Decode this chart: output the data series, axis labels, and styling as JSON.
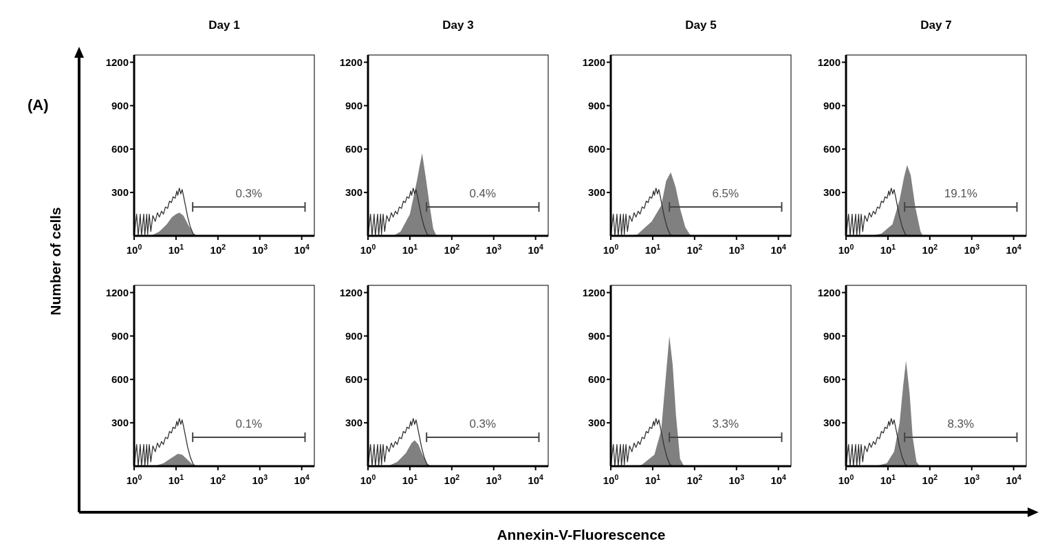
{
  "chart_data": [
    {
      "type": "area",
      "title": "Day 1",
      "ylabel": "Number of cells",
      "annotations": [
        "(A)",
        "0.3%"
      ],
      "log": "x",
      "xlim": [
        1,
        20000
      ],
      "ylim": [
        0,
        1250
      ],
      "xticks": [
        {
          "value": 1,
          "label": "10$^{0}$"
        },
        {
          "value": 10,
          "label": "10$^{1}$"
        },
        {
          "value": 100,
          "label": "10$^{2}$"
        },
        {
          "value": 1000,
          "label": "10$^{3}$"
        },
        {
          "value": 10000,
          "label": "10$^{4}$"
        }
      ],
      "yticks": [
        300,
        600,
        900,
        1200
      ],
      "grid": false,
      "series": [
        {
          "type": "line",
          "color": "#333333",
          "x": [
            1,
            1.15,
            1.25,
            1.4,
            1.5,
            1.7,
            1.8,
            2.0,
            2.1,
            2.3,
            2.5,
            2.8,
            3.2,
            3.6,
            4,
            4.5,
            5,
            5.6,
            6.3,
            7,
            7.8,
            8.5,
            9.5,
            10.5,
            11,
            12,
            13,
            14,
            15,
            17,
            19,
            22,
            26,
            30
          ],
          "values": [
            0,
            150,
            0,
            150,
            0,
            150,
            0,
            150,
            10,
            150,
            30,
            140,
            100,
            160,
            130,
            170,
            150,
            200,
            190,
            240,
            230,
            270,
            260,
            310,
            280,
            330,
            290,
            320,
            280,
            200,
            130,
            60,
            10,
            0
          ]
        },
        {
          "type": "area",
          "color": "#808080",
          "x": [
            2.5,
            4,
            6,
            8,
            10,
            12,
            15,
            20,
            25,
            32
          ],
          "values": [
            0,
            30,
            80,
            130,
            150,
            160,
            140,
            70,
            20,
            0
          ]
        },
        {
          "type": "line",
          "color": "#444444",
          "x": [
            25,
            12000
          ],
          "values": [
            200,
            200
          ]
        }
      ]
    },
    {
      "type": "area",
      "title": "Day 3",
      "annotations": [
        "0.4%"
      ],
      "log": "x",
      "xlim": [
        1,
        20000
      ],
      "ylim": [
        0,
        1250
      ],
      "xticks": [
        {
          "value": 1,
          "label": "10$^{0}$"
        },
        {
          "value": 10,
          "label": "10$^{1}$"
        },
        {
          "value": 100,
          "label": "10$^{2}$"
        },
        {
          "value": 1000,
          "label": "10$^{3}$"
        },
        {
          "value": 10000,
          "label": "10$^{4}$"
        }
      ],
      "yticks": [
        300,
        600,
        900,
        1200
      ],
      "grid": false,
      "series": [
        {
          "type": "line",
          "color": "#333333",
          "x": [
            1,
            1.15,
            1.25,
            1.4,
            1.5,
            1.7,
            1.8,
            2.0,
            2.1,
            2.3,
            2.5,
            2.8,
            3.2,
            3.6,
            4,
            4.5,
            5,
            5.6,
            6.3,
            7,
            7.8,
            8.5,
            9.5,
            10.5,
            11,
            12,
            13,
            14,
            15,
            17,
            19,
            22,
            26,
            30
          ],
          "values": [
            0,
            150,
            0,
            150,
            0,
            150,
            0,
            150,
            10,
            150,
            30,
            140,
            100,
            160,
            130,
            170,
            150,
            200,
            190,
            240,
            230,
            270,
            260,
            310,
            280,
            330,
            290,
            320,
            280,
            200,
            130,
            60,
            10,
            0
          ]
        },
        {
          "type": "area",
          "color": "#808080",
          "x": [
            4,
            6,
            10,
            14.7,
            17,
            19.6,
            24,
            30,
            36,
            43
          ],
          "values": [
            0,
            30,
            150,
            380,
            480,
            570,
            400,
            200,
            50,
            0
          ]
        },
        {
          "type": "line",
          "color": "#444444",
          "x": [
            25,
            12000
          ],
          "values": [
            200,
            200
          ]
        }
      ]
    },
    {
      "type": "area",
      "title": "Day 5",
      "annotations": [
        "6.5%"
      ],
      "log": "x",
      "xlim": [
        1,
        20000
      ],
      "ylim": [
        0,
        1250
      ],
      "xticks": [
        {
          "value": 1,
          "label": "10$^{0}$"
        },
        {
          "value": 10,
          "label": "10$^{1}$"
        },
        {
          "value": 100,
          "label": "10$^{2}$"
        },
        {
          "value": 1000,
          "label": "10$^{3}$"
        },
        {
          "value": 10000,
          "label": "10$^{4}$"
        }
      ],
      "yticks": [
        300,
        600,
        900,
        1200
      ],
      "grid": false,
      "series": [
        {
          "type": "line",
          "color": "#333333",
          "x": [
            1,
            1.15,
            1.25,
            1.4,
            1.5,
            1.7,
            1.8,
            2.0,
            2.1,
            2.3,
            2.5,
            2.8,
            3.2,
            3.6,
            4,
            4.5,
            5,
            5.6,
            6.3,
            7,
            7.8,
            8.5,
            9.5,
            10.5,
            11,
            12,
            13,
            14,
            15,
            17,
            19,
            22,
            26,
            30
          ],
          "values": [
            0,
            150,
            0,
            150,
            0,
            150,
            0,
            150,
            10,
            150,
            30,
            140,
            100,
            160,
            130,
            170,
            150,
            200,
            190,
            240,
            230,
            270,
            260,
            310,
            280,
            330,
            290,
            320,
            280,
            200,
            130,
            60,
            10,
            0
          ]
        },
        {
          "type": "area",
          "color": "#808080",
          "x": [
            3,
            4.3,
            9.5,
            16,
            21,
            27,
            35,
            46,
            60,
            77,
            100
          ],
          "values": [
            0,
            10,
            100,
            210,
            380,
            440,
            340,
            180,
            60,
            10,
            0
          ]
        },
        {
          "type": "line",
          "color": "#444444",
          "x": [
            25,
            12000
          ],
          "values": [
            200,
            200
          ]
        }
      ]
    },
    {
      "type": "area",
      "title": "Day 7",
      "annotations": [
        "19.1%"
      ],
      "log": "x",
      "xlim": [
        1,
        20000
      ],
      "ylim": [
        0,
        1250
      ],
      "xticks": [
        {
          "value": 1,
          "label": "10$^{0}$"
        },
        {
          "value": 10,
          "label": "10$^{1}$"
        },
        {
          "value": 100,
          "label": "10$^{2}$"
        },
        {
          "value": 1000,
          "label": "10$^{3}$"
        },
        {
          "value": 10000,
          "label": "10$^{4}$"
        }
      ],
      "yticks": [
        300,
        600,
        900,
        1200
      ],
      "grid": false,
      "series": [
        {
          "type": "line",
          "color": "#333333",
          "x": [
            1,
            1.15,
            1.25,
            1.4,
            1.5,
            1.7,
            1.8,
            2.0,
            2.1,
            2.3,
            2.5,
            2.8,
            3.2,
            3.6,
            4,
            4.5,
            5,
            5.6,
            6.3,
            7,
            7.8,
            8.5,
            9.5,
            10.5,
            11,
            12,
            13,
            14,
            15,
            17,
            19,
            22,
            26,
            30
          ],
          "values": [
            0,
            150,
            0,
            150,
            0,
            150,
            0,
            150,
            10,
            150,
            30,
            140,
            100,
            160,
            130,
            170,
            150,
            200,
            190,
            240,
            230,
            270,
            260,
            310,
            280,
            330,
            290,
            320,
            280,
            200,
            130,
            60,
            10,
            0
          ]
        },
        {
          "type": "area",
          "color": "#808080",
          "x": [
            4,
            7,
            12.8,
            19,
            24,
            28.6,
            35,
            45,
            60,
            68
          ],
          "values": [
            0,
            15,
            80,
            250,
            400,
            490,
            420,
            200,
            30,
            0
          ]
        },
        {
          "type": "line",
          "color": "#444444",
          "x": [
            25,
            12000
          ],
          "values": [
            200,
            200
          ]
        }
      ]
    },
    {
      "type": "area",
      "annotations": [
        "0.1%"
      ],
      "log": "x",
      "xlim": [
        1,
        20000
      ],
      "ylim": [
        0,
        1250
      ],
      "xticks": [
        {
          "value": 1,
          "label": "10$^{0}$"
        },
        {
          "value": 10,
          "label": "10$^{1}$"
        },
        {
          "value": 100,
          "label": "10$^{2}$"
        },
        {
          "value": 1000,
          "label": "10$^{3}$"
        },
        {
          "value": 10000,
          "label": "10$^{4}$"
        }
      ],
      "yticks": [
        300,
        600,
        900,
        1200
      ],
      "grid": false,
      "series": [
        {
          "type": "line",
          "color": "#333333",
          "x": [
            1,
            1.15,
            1.25,
            1.4,
            1.5,
            1.7,
            1.8,
            2.0,
            2.1,
            2.3,
            2.5,
            2.8,
            3.2,
            3.6,
            4,
            4.5,
            5,
            5.6,
            6.3,
            7,
            7.8,
            8.5,
            9.5,
            10.5,
            11,
            12,
            13,
            14,
            15,
            17,
            19,
            22,
            26,
            30
          ],
          "values": [
            0,
            150,
            0,
            150,
            0,
            150,
            0,
            150,
            10,
            150,
            30,
            140,
            100,
            160,
            130,
            170,
            150,
            200,
            190,
            240,
            230,
            270,
            260,
            310,
            280,
            330,
            290,
            320,
            280,
            200,
            130,
            60,
            10,
            0
          ]
        },
        {
          "type": "area",
          "color": "#808080",
          "x": [
            3,
            5,
            8,
            11,
            14,
            18,
            24,
            30
          ],
          "values": [
            0,
            20,
            60,
            85,
            80,
            50,
            15,
            0
          ]
        },
        {
          "type": "line",
          "color": "#444444",
          "x": [
            25,
            12000
          ],
          "values": [
            200,
            200
          ]
        }
      ]
    },
    {
      "type": "area",
      "annotations": [
        "0.3%"
      ],
      "log": "x",
      "xlim": [
        1,
        20000
      ],
      "ylim": [
        0,
        1250
      ],
      "xticks": [
        {
          "value": 1,
          "label": "10$^{0}$"
        },
        {
          "value": 10,
          "label": "10$^{1}$"
        },
        {
          "value": 100,
          "label": "10$^{2}$"
        },
        {
          "value": 1000,
          "label": "10$^{3}$"
        },
        {
          "value": 10000,
          "label": "10$^{4}$"
        }
      ],
      "yticks": [
        300,
        600,
        900,
        1200
      ],
      "grid": false,
      "series": [
        {
          "type": "line",
          "color": "#333333",
          "x": [
            1,
            1.15,
            1.25,
            1.4,
            1.5,
            1.7,
            1.8,
            2.0,
            2.1,
            2.3,
            2.5,
            2.8,
            3.2,
            3.6,
            4,
            4.5,
            5,
            5.6,
            6.3,
            7,
            7.8,
            8.5,
            9.5,
            10.5,
            11,
            12,
            13,
            14,
            15,
            17,
            19,
            22,
            26,
            30
          ],
          "values": [
            0,
            150,
            0,
            150,
            0,
            150,
            0,
            150,
            10,
            150,
            30,
            140,
            100,
            160,
            130,
            170,
            150,
            200,
            190,
            240,
            230,
            270,
            260,
            310,
            280,
            330,
            290,
            320,
            280,
            200,
            130,
            60,
            10,
            0
          ]
        },
        {
          "type": "area",
          "color": "#808080",
          "x": [
            3,
            5,
            8,
            11,
            13,
            16,
            20,
            25,
            32
          ],
          "values": [
            0,
            30,
            90,
            160,
            180,
            150,
            80,
            20,
            0
          ]
        },
        {
          "type": "line",
          "color": "#444444",
          "x": [
            25,
            12000
          ],
          "values": [
            200,
            200
          ]
        }
      ]
    },
    {
      "type": "area",
      "xlabel": "Annexin-V-Fluorescence",
      "annotations": [
        "3.3%"
      ],
      "log": "x",
      "xlim": [
        1,
        20000
      ],
      "ylim": [
        0,
        1250
      ],
      "xticks": [
        {
          "value": 1,
          "label": "10$^{0}$"
        },
        {
          "value": 10,
          "label": "10$^{1}$"
        },
        {
          "value": 100,
          "label": "10$^{2}$"
        },
        {
          "value": 1000,
          "label": "10$^{3}$"
        },
        {
          "value": 10000,
          "label": "10$^{4}$"
        }
      ],
      "yticks": [
        300,
        600,
        900,
        1200
      ],
      "grid": false,
      "series": [
        {
          "type": "line",
          "color": "#333333",
          "x": [
            1,
            1.15,
            1.25,
            1.4,
            1.5,
            1.7,
            1.8,
            2.0,
            2.1,
            2.3,
            2.5,
            2.8,
            3.2,
            3.6,
            4,
            4.5,
            5,
            5.6,
            6.3,
            7,
            7.8,
            8.5,
            9.5,
            10.5,
            11,
            12,
            13,
            14,
            15,
            17,
            19,
            22,
            26,
            30
          ],
          "values": [
            0,
            150,
            0,
            150,
            0,
            150,
            0,
            150,
            10,
            150,
            30,
            140,
            100,
            160,
            130,
            170,
            150,
            200,
            190,
            240,
            230,
            270,
            260,
            310,
            280,
            330,
            290,
            320,
            280,
            200,
            130,
            60,
            10,
            0
          ]
        },
        {
          "type": "area",
          "color": "#808080",
          "x": [
            4,
            5.5,
            11,
            16,
            21,
            25,
            30,
            36,
            45,
            56
          ],
          "values": [
            0,
            10,
            80,
            250,
            650,
            900,
            700,
            350,
            50,
            0
          ]
        },
        {
          "type": "line",
          "color": "#444444",
          "x": [
            25,
            12000
          ],
          "values": [
            200,
            200
          ]
        }
      ]
    },
    {
      "type": "area",
      "annotations": [
        "8.3%"
      ],
      "log": "x",
      "xlim": [
        1,
        20000
      ],
      "ylim": [
        0,
        1250
      ],
      "xticks": [
        {
          "value": 1,
          "label": "10$^{0}$"
        },
        {
          "value": 10,
          "label": "10$^{1}$"
        },
        {
          "value": 100,
          "label": "10$^{2}$"
        },
        {
          "value": 1000,
          "label": "10$^{3}$"
        },
        {
          "value": 10000,
          "label": "10$^{4}$"
        }
      ],
      "yticks": [
        300,
        600,
        900,
        1200
      ],
      "grid": false,
      "series": [
        {
          "type": "line",
          "color": "#333333",
          "x": [
            1,
            1.15,
            1.25,
            1.4,
            1.5,
            1.7,
            1.8,
            2.0,
            2.1,
            2.3,
            2.5,
            2.8,
            3.2,
            3.6,
            4,
            4.5,
            5,
            5.6,
            6.3,
            7,
            7.8,
            8.5,
            9.5,
            10.5,
            11,
            12,
            13,
            14,
            15,
            17,
            19,
            22,
            26,
            30
          ],
          "values": [
            0,
            150,
            0,
            150,
            0,
            150,
            0,
            150,
            10,
            150,
            30,
            140,
            100,
            160,
            130,
            170,
            150,
            200,
            190,
            240,
            230,
            270,
            260,
            310,
            280,
            330,
            290,
            320,
            280,
            200,
            130,
            60,
            10,
            0
          ]
        },
        {
          "type": "area",
          "color": "#808080",
          "x": [
            5,
            9.4,
            14,
            19,
            23,
            27,
            33,
            39,
            48,
            58
          ],
          "values": [
            0,
            20,
            100,
            300,
            550,
            730,
            500,
            200,
            30,
            0
          ]
        },
        {
          "type": "line",
          "color": "#444444",
          "x": [
            25,
            12000
          ],
          "values": [
            200,
            200
          ]
        }
      ]
    }
  ]
}
